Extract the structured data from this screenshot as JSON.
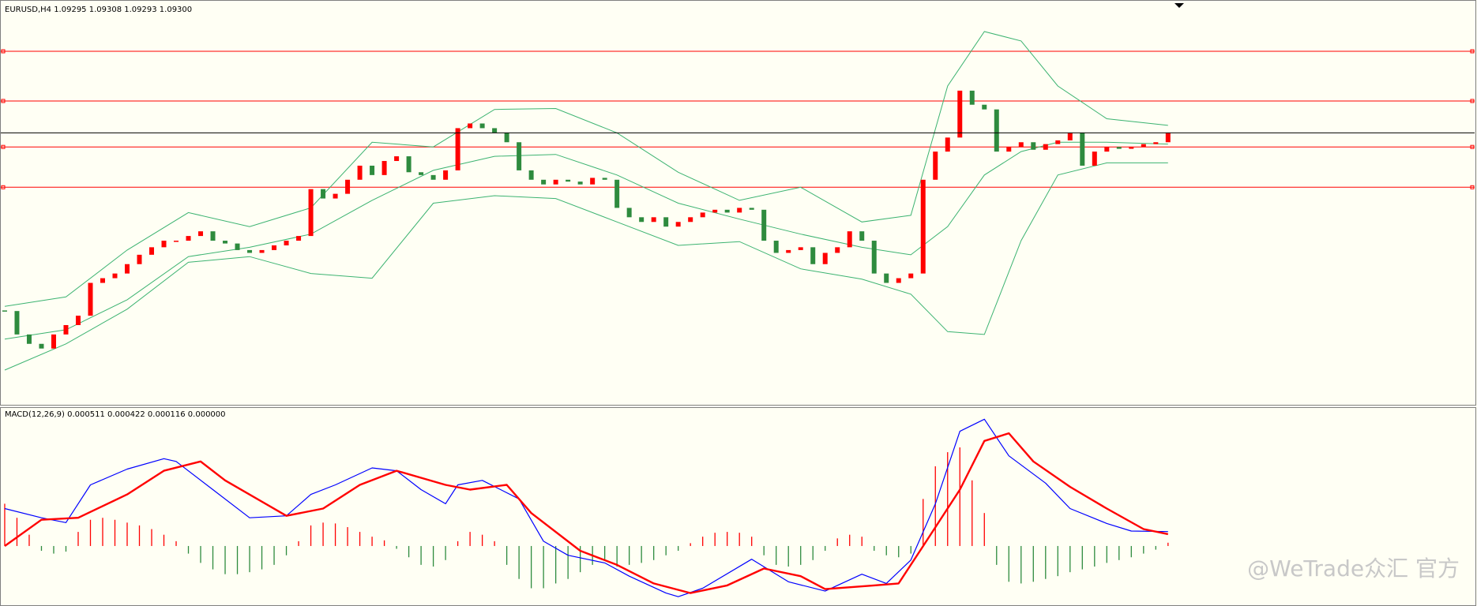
{
  "chart_data": [
    {
      "type": "candlestick",
      "title": "EURUSD,H4  1.09295 1.09308 1.09293 1.09300",
      "ylim": [
        1.0785,
        1.1
      ],
      "candles": {
        "up_color": "#ff0000",
        "down_color": "#2e8b3e",
        "close": [
          1.0835,
          1.08225,
          1.08175,
          1.0815,
          1.08225,
          1.08275,
          1.08325,
          1.085,
          1.08525,
          1.0855,
          1.086,
          1.0865,
          1.0869,
          1.08725,
          1.08725,
          1.0875,
          1.08775,
          1.08725,
          1.0871,
          1.08675,
          1.0866,
          1.08675,
          1.087,
          1.08725,
          1.0875,
          1.09,
          1.0895,
          1.08975,
          1.0905,
          1.09125,
          1.09075,
          1.0915,
          1.09175,
          1.0909,
          1.09075,
          1.0905,
          1.091,
          1.09325,
          1.0935,
          1.09325,
          1.093,
          1.0925,
          1.091,
          1.0905,
          1.09025,
          1.0905,
          1.0904,
          1.09025,
          1.0906,
          1.0905,
          1.089,
          1.0885,
          1.08825,
          1.0885,
          1.088,
          1.08825,
          1.0885,
          1.08875,
          1.0889,
          1.08875,
          1.089,
          1.0889,
          1.08725,
          1.0866,
          1.08675,
          1.0869,
          1.086,
          1.0866,
          1.0869,
          1.08775,
          1.08725,
          1.0855,
          1.085,
          1.08525,
          1.0855,
          1.0905,
          1.092,
          1.09275,
          1.09525,
          1.0945,
          1.09425,
          1.092,
          1.09225,
          1.0925,
          1.0921,
          1.0924,
          1.0926,
          1.093,
          1.09125,
          1.092,
          1.09225,
          1.09215,
          1.09225,
          1.0924,
          1.0925,
          1.093
        ]
      },
      "bands": {
        "color": "#3cb371",
        "x": [
          0,
          5,
          10,
          15,
          20,
          25,
          30,
          35,
          40,
          45,
          50,
          55,
          60,
          65,
          70,
          74,
          77,
          80,
          83,
          86,
          90,
          95
        ],
        "upper": [
          1.08375,
          1.08425,
          1.08675,
          1.08875,
          1.088,
          1.089,
          1.0925,
          1.09225,
          1.09425,
          1.0943,
          1.093,
          1.0909,
          1.0894,
          1.0901,
          1.08825,
          1.0886,
          1.0955,
          1.0984,
          1.0979,
          1.0955,
          1.09375,
          1.0934
        ],
        "middle": [
          1.082,
          1.0825,
          1.0841,
          1.0864,
          1.0869,
          1.0876,
          1.0894,
          1.091,
          1.09175,
          1.09185,
          1.09075,
          1.08925,
          1.0884,
          1.0876,
          1.0869,
          1.0865,
          1.088,
          1.09075,
          1.092,
          1.0925,
          1.0925,
          1.0924
        ],
        "lower": [
          1.08035,
          1.08175,
          1.0836,
          1.0861,
          1.0864,
          1.0855,
          1.08525,
          1.08925,
          1.08965,
          1.0895,
          1.08825,
          1.087,
          1.0872,
          1.08575,
          1.0852,
          1.0844,
          1.0824,
          1.08225,
          1.08725,
          1.09075,
          1.0914,
          1.0914
        ]
      },
      "hlines": {
        "color": "#ff0000",
        "values": [
          1.09735,
          1.0947,
          1.09225,
          1.0901
        ]
      },
      "price_line_color": "#000000"
    },
    {
      "type": "macd",
      "title": "MACD(12,26,9) 0.000511 0.000422 0.000116 0.000000",
      "ylim": [
        -0.00213,
        0.0049
      ],
      "main": {
        "color": "#0000ff",
        "x": [
          0,
          3,
          5,
          7,
          10,
          13,
          14,
          17,
          20,
          23,
          25,
          27,
          30,
          32,
          34,
          36,
          37,
          39,
          42,
          44,
          46,
          49,
          51,
          54,
          55,
          57,
          61,
          64,
          67,
          70,
          72,
          74,
          76,
          78,
          80,
          82,
          85,
          87,
          90,
          92,
          95
        ],
        "values": [
          0.00133,
          0.001,
          0.00083,
          0.00217,
          0.00273,
          0.0031,
          0.003,
          0.002,
          0.001,
          0.00107,
          0.00183,
          0.00217,
          0.00277,
          0.00267,
          0.002,
          0.0015,
          0.00217,
          0.00233,
          0.00167,
          0.00017,
          -0.00033,
          -0.0006,
          -0.00107,
          -0.00167,
          -0.0018,
          -0.0015,
          -0.00047,
          -0.00127,
          -0.0016,
          -0.001,
          -0.00133,
          -0.0005,
          0.0015,
          0.00407,
          0.0045,
          0.0032,
          0.00223,
          0.00133,
          0.0008,
          0.00053,
          0.000511
        ]
      },
      "signal": {
        "color": "#ff0000",
        "x": [
          0,
          3,
          6,
          10,
          13,
          16,
          18,
          23,
          26,
          29,
          32,
          36,
          38,
          41,
          43,
          47,
          50,
          53,
          56,
          59,
          62,
          65,
          67,
          71,
          73,
          75,
          78,
          80,
          82,
          84,
          87,
          90,
          93,
          95
        ],
        "values": [
          0,
          0.00093,
          0.001,
          0.00183,
          0.00267,
          0.003,
          0.00233,
          0.00107,
          0.00133,
          0.00217,
          0.00267,
          0.00217,
          0.002,
          0.00217,
          0.00117,
          -0.00017,
          -0.00067,
          -0.00133,
          -0.00167,
          -0.0014,
          -0.0008,
          -0.00107,
          -0.00153,
          -0.0014,
          -0.00133,
          0,
          0.002,
          0.00373,
          0.004,
          0.003,
          0.0021,
          0.00133,
          0.0006,
          0.000422
        ]
      },
      "histogram": {
        "pos_color": "#ff0000",
        "neg_color": "#2e8b3e",
        "values": [
          0.0015,
          0.001,
          0.0004,
          -0.00017,
          -0.00027,
          -0.0002,
          0.0005,
          0.00093,
          0.001,
          0.00093,
          0.00083,
          0.00073,
          0.0006,
          0.0004,
          0.00017,
          -0.00027,
          -0.0006,
          -0.00083,
          -0.001,
          -0.001,
          -0.00093,
          -0.00083,
          -0.00067,
          -0.00033,
          0.00017,
          0.00073,
          0.00083,
          0.0008,
          0.00067,
          0.0005,
          0.00033,
          0.0002,
          -0.0001,
          -0.0004,
          -0.00067,
          -0.00073,
          -0.0005,
          0.00017,
          0.0005,
          0.0004,
          0.00017,
          -0.00067,
          -0.00117,
          -0.0015,
          -0.0015,
          -0.00133,
          -0.00117,
          -0.00093,
          -0.00067,
          -0.0005,
          -0.00073,
          -0.00067,
          -0.0006,
          -0.0005,
          -0.00033,
          -0.00017,
          0.0001,
          0.00033,
          0.00047,
          0.0005,
          0.00047,
          0.00033,
          -0.00033,
          -0.00067,
          -0.00073,
          -0.00067,
          -0.0005,
          -0.00017,
          0.00027,
          0.0004,
          0.00033,
          -0.00017,
          -0.00033,
          -0.0004,
          -0.00027,
          0.00167,
          0.00283,
          0.00333,
          0.0035,
          0.00233,
          0.00117,
          -0.00067,
          -0.00127,
          -0.00133,
          -0.00127,
          -0.00117,
          -0.00107,
          -0.00093,
          -0.00083,
          -0.00073,
          -0.0006,
          -0.0005,
          -0.0004,
          -0.00027,
          -0.00013,
          0.000116
        ]
      }
    }
  ],
  "watermark": "@WeTrade众汇 官方"
}
